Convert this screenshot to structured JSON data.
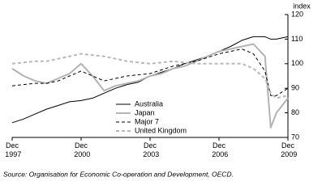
{
  "chart_data": {
    "type": "line",
    "y_label": "index",
    "source": "Source: Organisation for Economic Co-operation and Development, OECD.",
    "x": [
      1997.92,
      1998.42,
      1998.92,
      1999.42,
      1999.92,
      2000.42,
      2000.92,
      2001.42,
      2001.92,
      2002.42,
      2002.92,
      2003.42,
      2003.92,
      2004.42,
      2004.92,
      2005.42,
      2005.92,
      2006.42,
      2006.92,
      2007.42,
      2007.92,
      2008.42,
      2008.92,
      2009.17,
      2009.42,
      2009.92
    ],
    "series": [
      {
        "name": "Australia",
        "color": "#000000",
        "dash": false,
        "width": 1,
        "values": [
          76,
          77.5,
          79.5,
          81.5,
          83,
          84.5,
          85,
          86,
          88,
          90,
          91.5,
          92.5,
          95,
          96.5,
          98,
          100,
          101.5,
          103,
          105,
          107,
          109.5,
          111,
          111,
          110,
          110,
          111
        ]
      },
      {
        "name": "Japan",
        "color": "#b3b3b3",
        "dash": false,
        "width": 2,
        "values": [
          98,
          95,
          93,
          92,
          94,
          96,
          100,
          95,
          89,
          91,
          92,
          93,
          95,
          96,
          98,
          99,
          101,
          103,
          105,
          106,
          107,
          108,
          103,
          74,
          80,
          86
        ]
      },
      {
        "name": "Major 7",
        "color": "#000000",
        "dash": true,
        "width": 1,
        "values": [
          91,
          91.5,
          92,
          92,
          93,
          95,
          97,
          95,
          93,
          94,
          95,
          95.5,
          96,
          97.5,
          99,
          100,
          101,
          102.5,
          104,
          105,
          106,
          104,
          97,
          87,
          87,
          90
        ]
      },
      {
        "name": "United Kingdom",
        "color": "#b8b8b8",
        "dash": true,
        "width": 2,
        "values": [
          100,
          100.5,
          101,
          101,
          102,
          103,
          104,
          103.5,
          103,
          102,
          101,
          100.5,
          100,
          100.5,
          101,
          100.5,
          100,
          100,
          100,
          100,
          100,
          98,
          94,
          88,
          86,
          87
        ]
      }
    ],
    "xlim": [
      1997.92,
      2009.92
    ],
    "xticks": [
      {
        "value": 1997.92,
        "label": "Dec 1997"
      },
      {
        "value": 2000.92,
        "label": "Dec 2000"
      },
      {
        "value": 2003.92,
        "label": "Dec 2003"
      },
      {
        "value": 2006.92,
        "label": "Dec 2006"
      },
      {
        "value": 2009.92,
        "label": "Dec 2009"
      }
    ],
    "ylim": [
      70,
      120
    ],
    "yticks": [
      70,
      80,
      90,
      100,
      110,
      120
    ],
    "grid": false
  }
}
